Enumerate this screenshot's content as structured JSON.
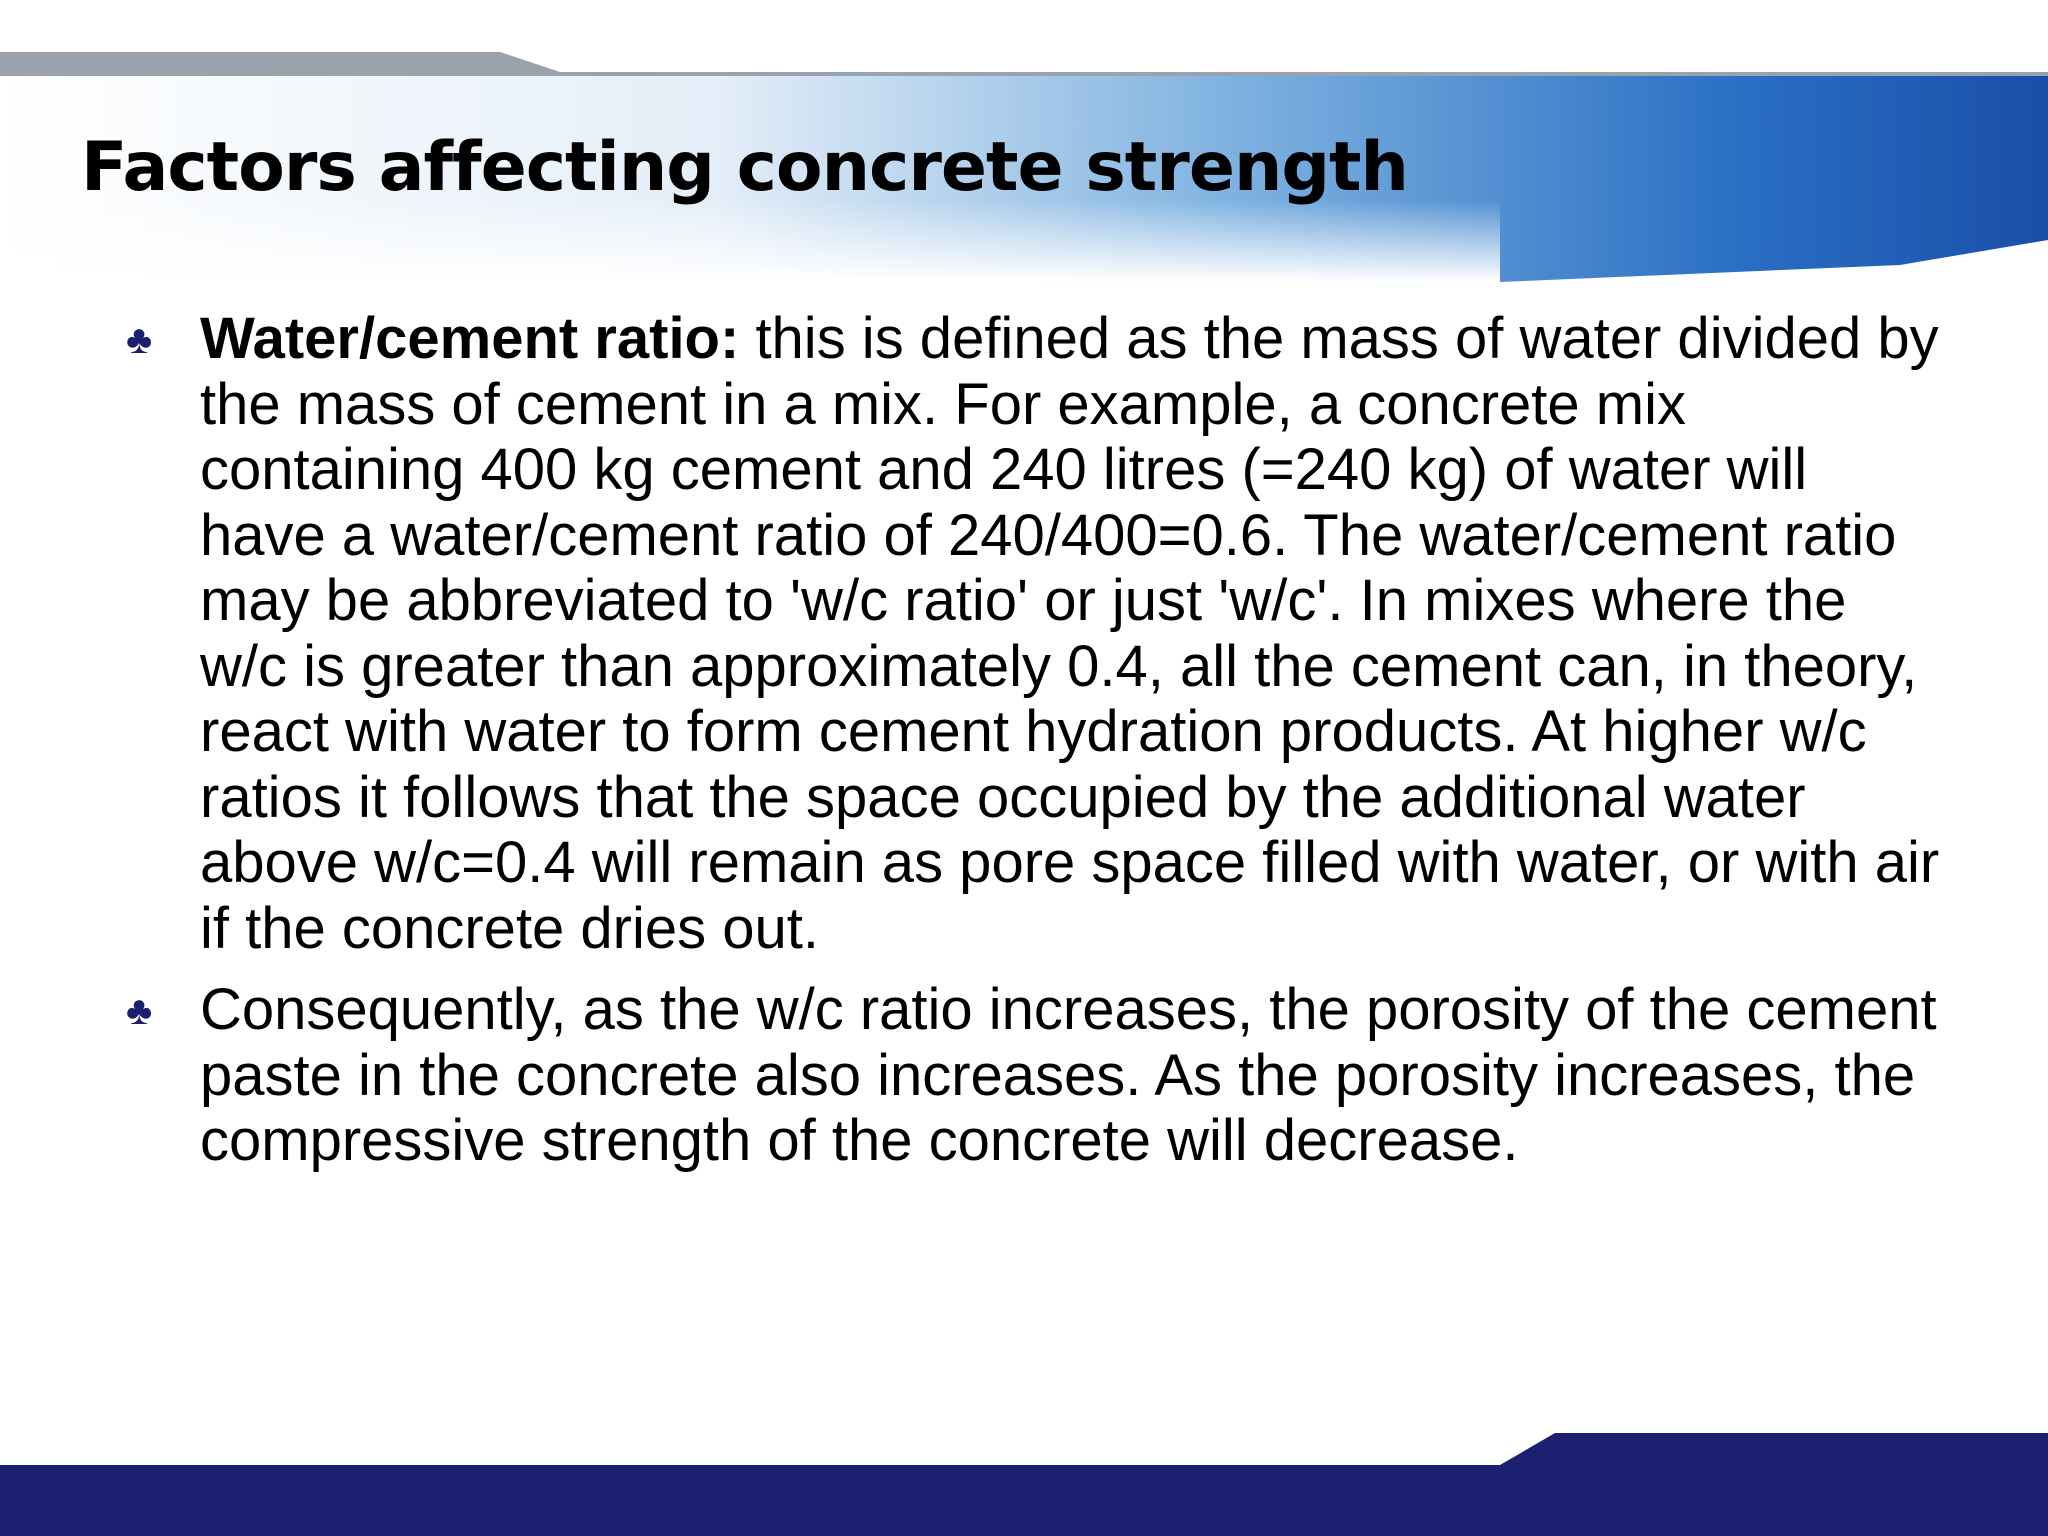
{
  "title": "Factors affecting concrete strength",
  "bullets": [
    {
      "lead": "Water/cement ratio:",
      "text": "this is defined as the mass of water divided by the mass of cement in a mix. For example, a concrete mix containing 400 kg cement and 240 litres (=240 kg) of water will have a water/cement ratio of 240/400=0.6. The water/cement ratio may be abbreviated to 'w/c ratio' or just 'w/c'. In mixes where the w/c is greater than approximately 0.4, all the cement can, in theory, react with water to form cement hydration products. At higher w/c ratios it follows that the space occupied by the additional water above w/c=0.4 will remain as pore space filled with water, or with air if the concrete dries out."
    },
    {
      "text": "Consequently, as the w/c ratio increases, the porosity of the cement paste in the concrete also increases. As the porosity increases, the compressive strength of the concrete will decrease."
    }
  ]
}
